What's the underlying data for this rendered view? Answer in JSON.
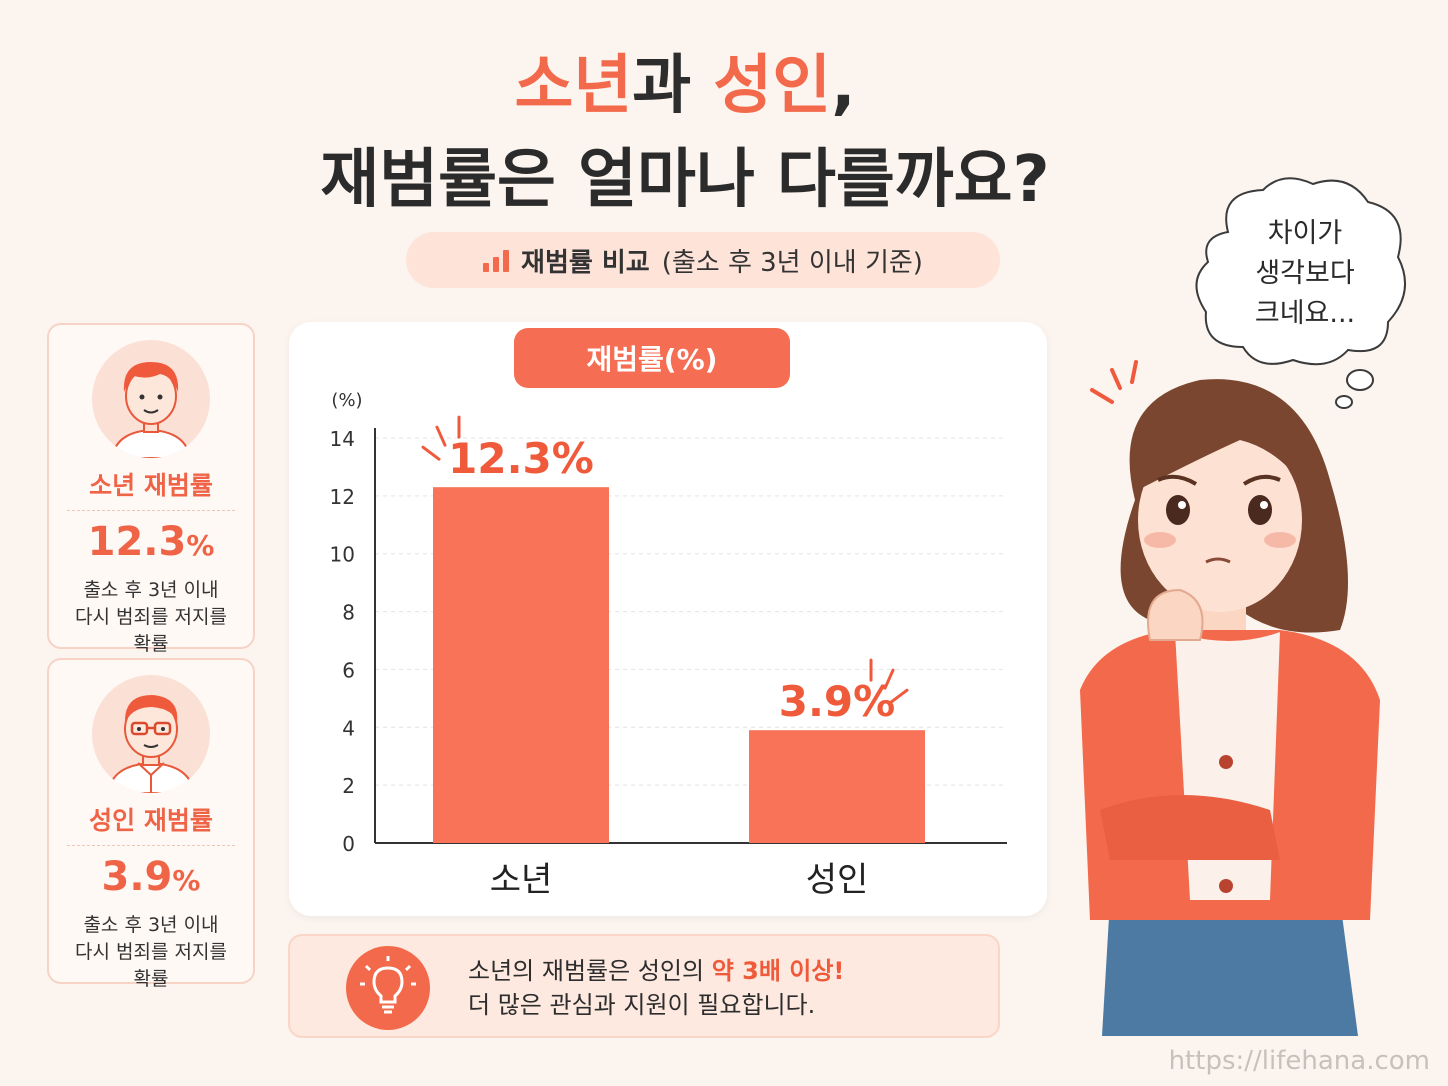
{
  "title": {
    "line1_a": "소년",
    "line1_b": "과 ",
    "line1_c": "성인",
    "line1_d": ",",
    "line2": "재범률은 얼마나 다를까요?"
  },
  "subtitle": {
    "main": "재범률 비교",
    "sub": "(출소 후 3년 이내 기준)"
  },
  "cards": {
    "youth": {
      "label": "소년 재범률",
      "value": "12.3",
      "unit": "%",
      "desc1": "출소 후 3년 이내",
      "desc2": "다시 범죄를 저지를",
      "desc3": "확률"
    },
    "adult": {
      "label": "성인 재범률",
      "value": "3.9",
      "unit": "%",
      "desc1": "출소 후 3년 이내",
      "desc2": "다시 범죄를 저지를",
      "desc3": "확률"
    }
  },
  "chart_pill": "재범률(%)",
  "chart_data": {
    "type": "bar",
    "categories": [
      "소년",
      "성인"
    ],
    "values": [
      12.3,
      3.9
    ],
    "data_labels": [
      "12.3%",
      "3.9%"
    ],
    "ylabel": "(%)",
    "ylim": [
      0,
      14
    ],
    "yticks": [
      0,
      2,
      4,
      6,
      8,
      10,
      12,
      14
    ],
    "grid": true,
    "bar_color": "#f87357"
  },
  "tip": {
    "line1_a": "소년의 재범률은 성인의 ",
    "line1_b": "약 3배 이상!",
    "line2": "더 많은 관심과 지원이 필요합니다."
  },
  "bubble": {
    "line1": "차이가",
    "line2": "생각보다",
    "line3": "크네요..."
  },
  "watermark": "https://lifehana.com",
  "colors": {
    "accent": "#f26a4b",
    "background": "#fbf4ef"
  }
}
